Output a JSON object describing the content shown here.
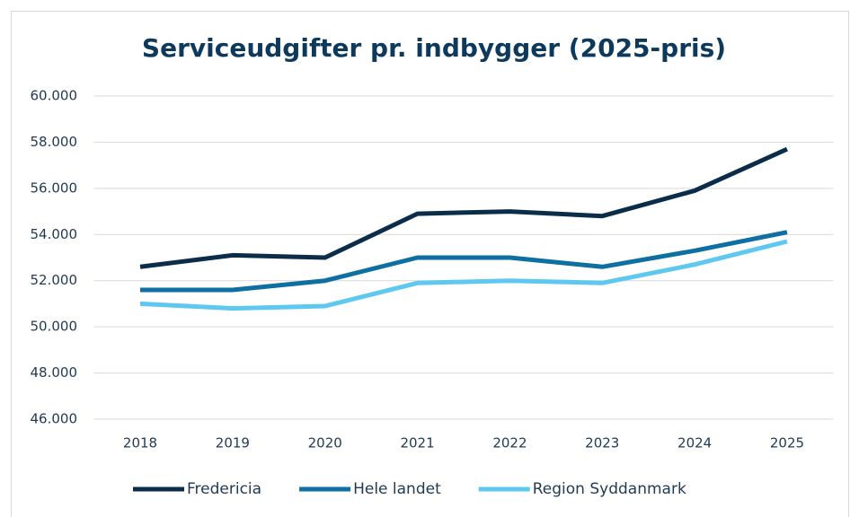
{
  "chart_data": {
    "type": "line",
    "title": "Serviceudgifter pr. indbygger (2025-pris)",
    "categories": [
      "2018",
      "2019",
      "2020",
      "2021",
      "2022",
      "2023",
      "2024",
      "2025"
    ],
    "series": [
      {
        "name": "Fredericia",
        "color": "#0b2d4a",
        "values": [
          52600,
          53100,
          53000,
          54900,
          55000,
          54800,
          55900,
          57700
        ]
      },
      {
        "name": "Hele landet",
        "color": "#0e6fa3",
        "values": [
          51600,
          51600,
          52000,
          53000,
          53000,
          52600,
          53300,
          54100
        ]
      },
      {
        "name": "Region Syddanmark",
        "color": "#5ec8f0",
        "values": [
          51000,
          50800,
          50900,
          51900,
          52000,
          51900,
          52700,
          53700
        ]
      }
    ],
    "ylim": [
      46000,
      60000
    ],
    "yticks": [
      {
        "value": 46000,
        "label": "46.000"
      },
      {
        "value": 48000,
        "label": "48.000"
      },
      {
        "value": 50000,
        "label": "50.000"
      },
      {
        "value": 52000,
        "label": "52.000"
      },
      {
        "value": 54000,
        "label": "54.000"
      },
      {
        "value": 56000,
        "label": "56.000"
      },
      {
        "value": 58000,
        "label": "58.000"
      },
      {
        "value": 60000,
        "label": "60.000"
      }
    ],
    "grid": true,
    "legend": "bottom"
  }
}
